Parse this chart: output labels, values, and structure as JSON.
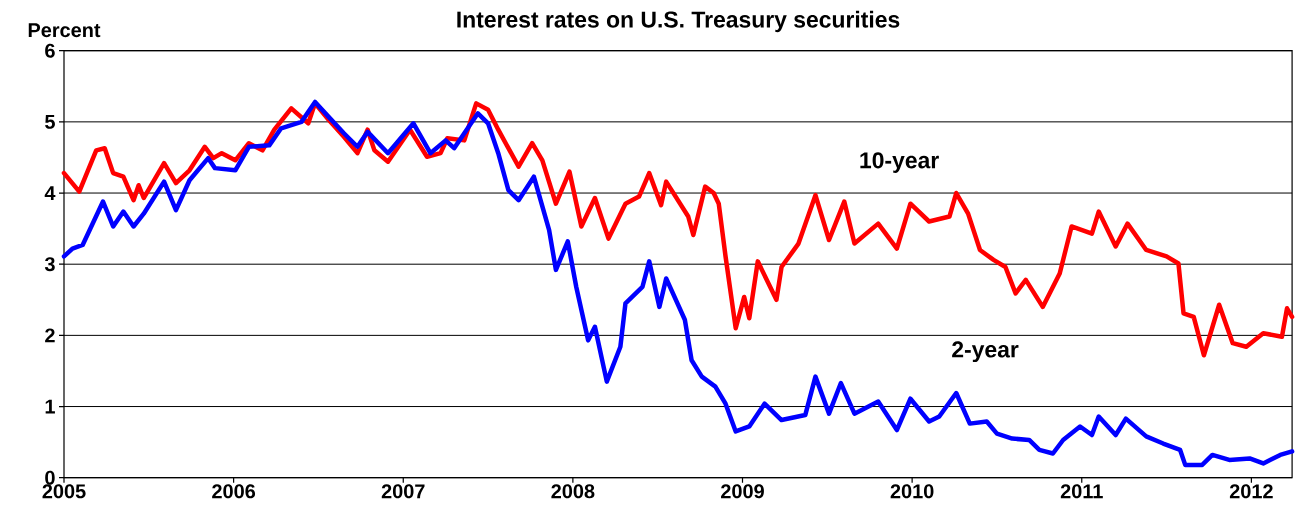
{
  "chart_data": {
    "type": "line",
    "title": "Interest rates on U.S. Treasury securities",
    "ylabel": "Percent",
    "xlim": [
      2005,
      2012.24
    ],
    "xticks": [
      2005,
      2006,
      2007,
      2008,
      2009,
      2010,
      2011,
      2012
    ],
    "ylim": [
      0,
      6
    ],
    "yticks": [
      0,
      1,
      2,
      3,
      4,
      5,
      6
    ],
    "grid": "y",
    "series": [
      {
        "name": "10-year",
        "color": "#ff0000",
        "x": [
          2005.0,
          2005.09,
          2005.19,
          2005.24,
          2005.29,
          2005.35,
          2005.41,
          2005.44,
          2005.47,
          2005.59,
          2005.66,
          2005.74,
          2005.83,
          2005.88,
          2005.93,
          2006.01,
          2006.09,
          2006.17,
          2006.24,
          2006.34,
          2006.44,
          2006.48,
          2006.56,
          2006.65,
          2006.73,
          2006.79,
          2006.83,
          2006.91,
          2007.04,
          2007.14,
          2007.22,
          2007.26,
          2007.36,
          2007.43,
          2007.5,
          2007.56,
          2007.68,
          2007.76,
          2007.82,
          2007.9,
          2007.98,
          2008.05,
          2008.13,
          2008.21,
          2008.31,
          2008.39,
          2008.45,
          2008.52,
          2008.55,
          2008.68,
          2008.71,
          2008.78,
          2008.83,
          2008.86,
          2008.9,
          2008.96,
          2009.01,
          2009.04,
          2009.09,
          2009.2,
          2009.23,
          2009.33,
          2009.43,
          2009.51,
          2009.6,
          2009.66,
          2009.8,
          2009.91,
          2009.99,
          2010.1,
          2010.22,
          2010.26,
          2010.33,
          2010.4,
          2010.48,
          2010.55,
          2010.61,
          2010.67,
          2010.77,
          2010.87,
          2010.94,
          2011.06,
          2011.1,
          2011.2,
          2011.27,
          2011.38,
          2011.5,
          2011.57,
          2011.6,
          2011.66,
          2011.72,
          2011.81,
          2011.89,
          2011.97,
          2012.07,
          2012.18,
          2012.21,
          2012.24
        ],
        "values": [
          4.28,
          4.02,
          4.6,
          4.63,
          4.28,
          4.23,
          3.9,
          4.11,
          3.93,
          4.42,
          4.14,
          4.32,
          4.65,
          4.49,
          4.56,
          4.46,
          4.7,
          4.6,
          4.89,
          5.19,
          4.98,
          5.26,
          5.03,
          4.79,
          4.56,
          4.89,
          4.6,
          4.44,
          4.89,
          4.51,
          4.56,
          4.77,
          4.74,
          5.26,
          5.17,
          4.89,
          4.37,
          4.7,
          4.46,
          3.85,
          4.3,
          3.53,
          3.93,
          3.36,
          3.85,
          3.95,
          4.28,
          3.83,
          4.16,
          3.67,
          3.41,
          4.09,
          4.0,
          3.85,
          3.11,
          2.1,
          2.54,
          2.24,
          3.04,
          2.5,
          2.96,
          3.29,
          3.97,
          3.34,
          3.88,
          3.29,
          3.57,
          3.22,
          3.85,
          3.6,
          3.67,
          4.0,
          3.71,
          3.2,
          3.06,
          2.96,
          2.59,
          2.78,
          2.4,
          2.87,
          3.53,
          3.43,
          3.74,
          3.25,
          3.57,
          3.2,
          3.11,
          3.01,
          2.31,
          2.26,
          1.72,
          2.43,
          1.89,
          1.84,
          2.03,
          1.98,
          2.38,
          2.26
        ]
      },
      {
        "name": "2-year",
        "color": "#0000ff",
        "x": [
          2005.0,
          2005.05,
          2005.11,
          2005.23,
          2005.29,
          2005.35,
          2005.41,
          2005.47,
          2005.59,
          2005.66,
          2005.74,
          2005.85,
          2005.89,
          2006.01,
          2006.09,
          2006.21,
          2006.28,
          2006.4,
          2006.48,
          2006.56,
          2006.65,
          2006.73,
          2006.79,
          2006.91,
          2007.06,
          2007.16,
          2007.25,
          2007.3,
          2007.44,
          2007.5,
          2007.56,
          2007.62,
          2007.68,
          2007.77,
          2007.86,
          2007.9,
          2007.97,
          2008.02,
          2008.09,
          2008.13,
          2008.2,
          2008.28,
          2008.31,
          2008.41,
          2008.45,
          2008.51,
          2008.55,
          2008.66,
          2008.7,
          2008.76,
          2008.84,
          2008.9,
          2008.96,
          2009.04,
          2009.13,
          2009.23,
          2009.37,
          2009.43,
          2009.51,
          2009.58,
          2009.66,
          2009.8,
          2009.91,
          2009.99,
          2010.1,
          2010.16,
          2010.26,
          2010.34,
          2010.44,
          2010.5,
          2010.59,
          2010.69,
          2010.75,
          2010.83,
          2010.89,
          2010.99,
          2011.06,
          2011.1,
          2011.2,
          2011.26,
          2011.38,
          2011.48,
          2011.58,
          2011.61,
          2011.71,
          2011.77,
          2011.87,
          2011.99,
          2012.07,
          2012.17,
          2012.24
        ],
        "values": [
          3.11,
          3.22,
          3.27,
          3.88,
          3.53,
          3.74,
          3.53,
          3.71,
          4.16,
          3.76,
          4.18,
          4.49,
          4.35,
          4.32,
          4.65,
          4.67,
          4.91,
          5.0,
          5.28,
          5.07,
          4.84,
          4.65,
          4.86,
          4.56,
          4.98,
          4.56,
          4.74,
          4.63,
          5.12,
          4.98,
          4.56,
          4.04,
          3.9,
          4.23,
          3.48,
          2.92,
          3.32,
          2.68,
          1.93,
          2.12,
          1.35,
          1.84,
          2.45,
          2.68,
          3.04,
          2.4,
          2.8,
          2.22,
          1.65,
          1.42,
          1.28,
          1.04,
          0.65,
          0.72,
          1.04,
          0.81,
          0.88,
          1.42,
          0.9,
          1.33,
          0.9,
          1.07,
          0.67,
          1.11,
          0.79,
          0.86,
          1.19,
          0.76,
          0.79,
          0.62,
          0.55,
          0.53,
          0.39,
          0.34,
          0.53,
          0.72,
          0.6,
          0.86,
          0.6,
          0.83,
          0.58,
          0.48,
          0.39,
          0.18,
          0.18,
          0.32,
          0.25,
          0.27,
          0.2,
          0.32,
          0.37
        ]
      }
    ]
  }
}
